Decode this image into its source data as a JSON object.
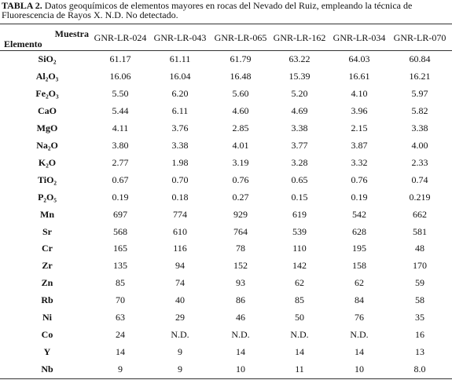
{
  "caption": {
    "label": "TABLA 2.",
    "text": "Datos geoquímicos de elementos mayores en rocas del Nevado del Ruiz, empleando la técnica de  Fluorescencia de Rayos X. N.D. No detectado."
  },
  "table": {
    "column_header": "Muestra",
    "row_header": "Elemento",
    "columns": [
      "GNR-LR-024",
      "GNR-LR-043",
      "GNR-LR-065",
      "GNR-LR-162",
      "GNR-LR-034",
      "GNR-LR-070"
    ],
    "rows": [
      [
        "SiO₂",
        "61.17",
        "61.11",
        "61.79",
        "63.22",
        "64.03",
        "60.84"
      ],
      [
        "Al₂O₃",
        "16.06",
        "16.04",
        "16.48",
        "15.39",
        "16.61",
        "16.21"
      ],
      [
        "Fe₂O₃",
        "5.50",
        "6.20",
        "5.60",
        "5.20",
        "4.10",
        "5.97"
      ],
      [
        "CaO",
        "5.44",
        "6.11",
        "4.60",
        "4.69",
        "3.96",
        "5.82"
      ],
      [
        "MgO",
        "4.11",
        "3.76",
        "2.85",
        "3.38",
        "2.15",
        "3.38"
      ],
      [
        "Na₂O",
        "3.80",
        "3.38",
        "4.01",
        "3.77",
        "3.87",
        "4.00"
      ],
      [
        "K₂O",
        "2.77",
        "1.98",
        "3.19",
        "3.28",
        "3.32",
        "2.33"
      ],
      [
        "TiO₂",
        "0.67",
        "0.70",
        "0.76",
        "0.65",
        "0.76",
        "0.74"
      ],
      [
        "P₂O₅",
        "0.19",
        "0.18",
        "0.27",
        "0.15",
        "0.19",
        "0.219"
      ],
      [
        "Mn",
        "697",
        "774",
        "929",
        "619",
        "542",
        "662"
      ],
      [
        "Sr",
        "568",
        "610",
        "764",
        "539",
        "628",
        "581"
      ],
      [
        "Cr",
        "165",
        "116",
        "78",
        "110",
        "195",
        "48"
      ],
      [
        "Zr",
        "135",
        "94",
        "152",
        "142",
        "158",
        "170"
      ],
      [
        "Zn",
        "85",
        "74",
        "93",
        "62",
        "62",
        "59"
      ],
      [
        "Rb",
        "70",
        "40",
        "86",
        "85",
        "84",
        "58"
      ],
      [
        "Ni",
        "63",
        "29",
        "46",
        "50",
        "76",
        "35"
      ],
      [
        "Co",
        "24",
        "N.D.",
        "N.D.",
        "N.D.",
        "N.D.",
        "16"
      ],
      [
        "Y",
        "14",
        "9",
        "14",
        "14",
        "14",
        "13"
      ],
      [
        "Nb",
        "9",
        "9",
        "10",
        "11",
        "10",
        "8.0"
      ]
    ]
  }
}
